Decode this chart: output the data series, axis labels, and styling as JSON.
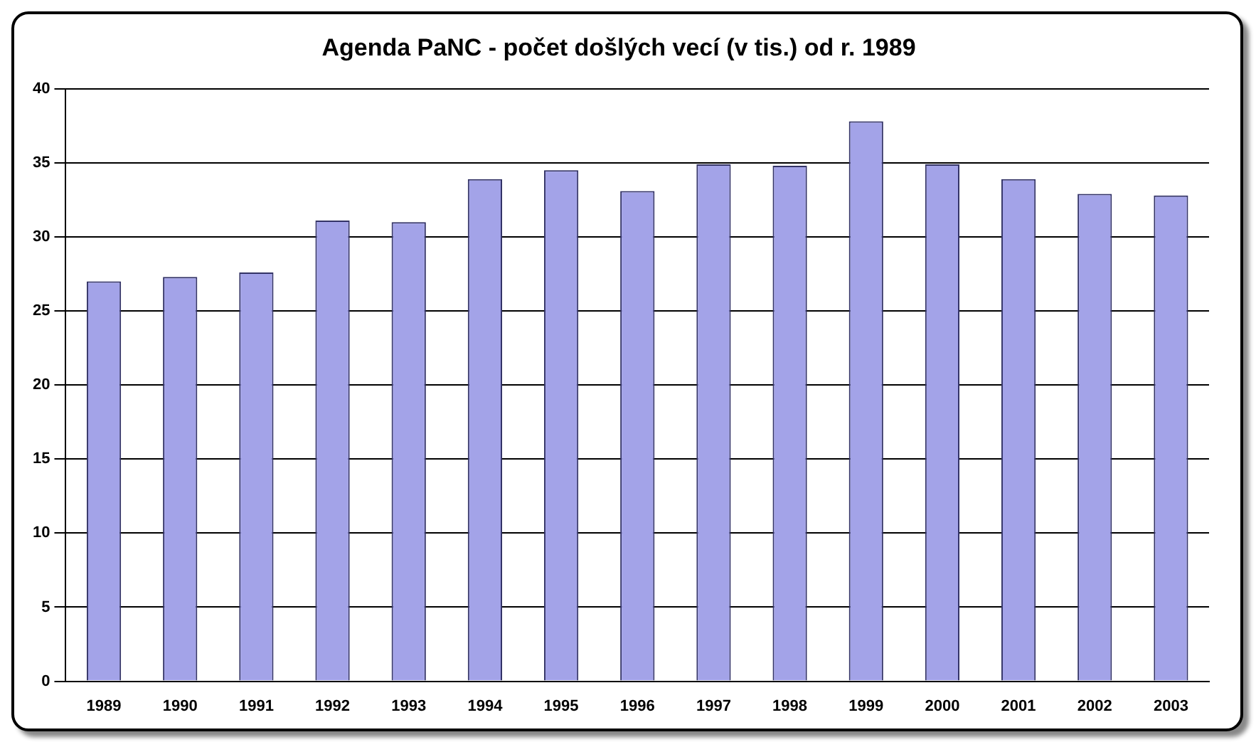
{
  "chart_data": {
    "type": "bar",
    "title": "Agenda PaNC - počet došlých vecí (v tis.) od r. 1989",
    "categories": [
      "1989",
      "1990",
      "1991",
      "1992",
      "1993",
      "1994",
      "1995",
      "1996",
      "1997",
      "1998",
      "1999",
      "2000",
      "2001",
      "2002",
      "2003"
    ],
    "values": [
      27.0,
      27.3,
      27.6,
      31.1,
      31.0,
      33.9,
      34.5,
      33.1,
      34.9,
      34.8,
      37.8,
      34.9,
      33.9,
      32.9,
      32.8
    ],
    "color": "#a3a3e8",
    "ylim": [
      0,
      40
    ],
    "yticks": [
      0,
      5,
      10,
      15,
      20,
      25,
      30,
      35,
      40
    ],
    "grid": "y",
    "legend": false
  }
}
